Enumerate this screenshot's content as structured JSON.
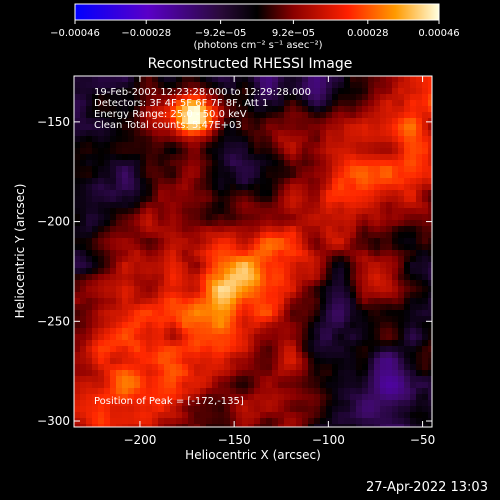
{
  "chart_data": {
    "type": "heatmap",
    "title": "Reconstructed RHESSI Image",
    "xlabel": "Heliocentric X (arcsec)",
    "ylabel": "Heliocentric Y (arcsec)",
    "xlim": [
      -235,
      -45
    ],
    "ylim": [
      -303,
      -127
    ],
    "x_ticks": [
      -200,
      -150,
      -100,
      -50
    ],
    "x_tick_labels": [
      "−200",
      "−150",
      "−100",
      "−50"
    ],
    "y_ticks": [
      -150,
      -200,
      -250,
      -300
    ],
    "y_tick_labels": [
      "−150",
      "−200",
      "−250",
      "−300"
    ],
    "colorbar": {
      "min": -0.00046,
      "max": 0.00046,
      "ticks": [
        -0.00046,
        -0.00028,
        -9.2e-05,
        9.2e-05,
        0.00028,
        0.00046
      ],
      "tick_labels": [
        "−0.00046",
        "−0.00028",
        "−9.2e−05",
        "9.2e−05",
        "0.00028",
        "0.00046"
      ],
      "units_label": "(photons cm⁻² s⁻¹ asec⁻²)"
    },
    "peak": {
      "x": -172,
      "y": -135
    }
  },
  "annotations": {
    "line1": "19-Feb-2002 12:23:28.000 to 12:29:28.000",
    "line2": "Detectors: 3F 4F 5F 6F 7F 8F, Att 1",
    "line3": "Energy Range: 25.0 - 50.0 keV",
    "line4": "Clean     Total counts: 5.47E+03",
    "peak_label": "Position of Peak = [-172,-135]"
  },
  "footer": {
    "timestamp": "27-Apr-2022 13:03"
  }
}
